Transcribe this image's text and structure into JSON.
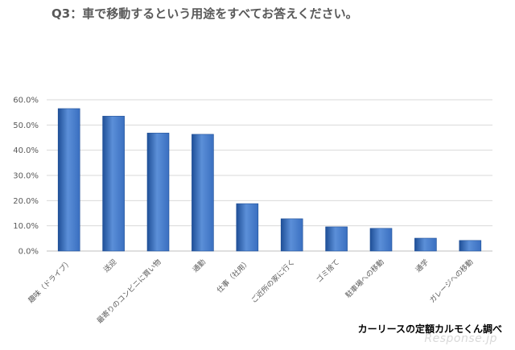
{
  "header": {
    "title": "Q3：車で移動するという用途をすべてお答えください。"
  },
  "source_note": "カーリースの定額カルモくん調べ",
  "watermark": "Response.jp",
  "colors": {
    "bar": "#3a6fc0",
    "bar_dark": "#1f4f97",
    "bar_light": "#5b8fd8",
    "grid": "#d9d9d9",
    "axis_text": "#595959"
  },
  "chart_data": {
    "type": "bar",
    "title": "Q3：車で移動するという用途をすべてお答えください。",
    "xlabel": "",
    "ylabel": "",
    "categories": [
      "趣味（ドライブ）",
      "送迎",
      "最寄りのコンビニに買い物",
      "通勤",
      "仕事（社用）",
      "ご近所の家に行く",
      "ゴミ捨て",
      "駐車場への移動",
      "通学",
      "ガレージへの移動"
    ],
    "values": [
      56.5,
      53.5,
      46.8,
      46.3,
      18.8,
      12.8,
      9.6,
      9.0,
      5.1,
      4.2
    ],
    "ylim": [
      0,
      60
    ],
    "yticks": [
      "0.0%",
      "10.0%",
      "20.0%",
      "30.0%",
      "40.0%",
      "50.0%",
      "60.0%"
    ],
    "grid": true,
    "legend": "none"
  }
}
